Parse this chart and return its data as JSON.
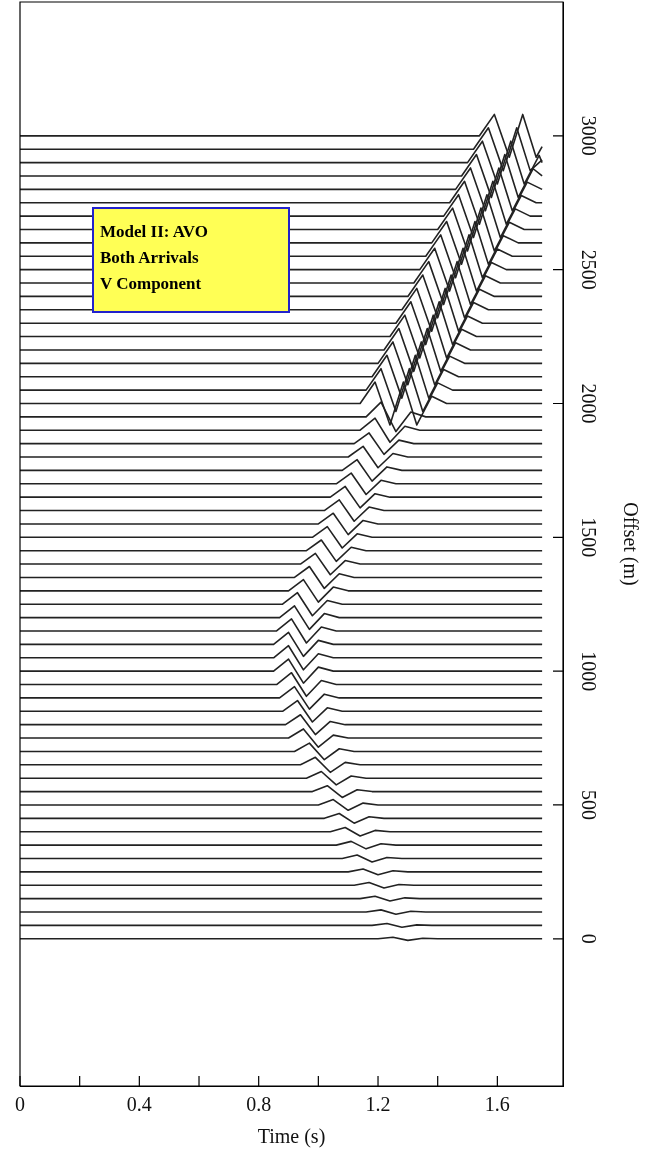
{
  "chart_data": {
    "type": "line",
    "xlabel": "Time (s)",
    "ylabel": "Offset (m)",
    "marker": "none",
    "annotations": [
      "Model II: AVO",
      "Both Arrivals",
      "V Component"
    ],
    "xlim": [
      0,
      1.82
    ],
    "ylim": [
      -550,
      3500
    ],
    "xticks": [
      0,
      {
        "value": 0.2,
        "label": null
      },
      0.4,
      {
        "value": 0.6,
        "label": null
      },
      0.8,
      {
        "value": 1.0,
        "label": null
      },
      1.2,
      {
        "value": 1.4,
        "label": null
      },
      1.6
    ],
    "yticks": [
      0,
      500,
      1000,
      1500,
      2000,
      2500,
      3000
    ],
    "series": [
      {
        "color": "#222222",
        "x": [
          0,
          1.2,
          1.25,
          1.3,
          1.35,
          1.4,
          1.75
        ],
        "values": [
          0,
          0,
          6,
          -6,
          2,
          0,
          0
        ]
      },
      {
        "color": "#222222",
        "x": [
          0,
          1.18,
          1.23,
          1.28,
          1.33,
          1.38,
          1.75
        ],
        "values": [
          50,
          50,
          57,
          43,
          52,
          50,
          50
        ]
      },
      {
        "color": "#222222",
        "x": [
          0,
          1.16,
          1.21,
          1.26,
          1.31,
          1.36,
          1.75
        ],
        "values": [
          100,
          100,
          108,
          92,
          103,
          100,
          100
        ]
      },
      {
        "color": "#222222",
        "x": [
          0,
          1.14,
          1.19,
          1.24,
          1.29,
          1.34,
          1.75
        ],
        "values": [
          150,
          150,
          159,
          141,
          153,
          150,
          150
        ]
      },
      {
        "color": "#222222",
        "x": [
          0,
          1.12,
          1.17,
          1.22,
          1.27,
          1.32,
          1.75
        ],
        "values": [
          200,
          200,
          210,
          190,
          203,
          200,
          200
        ]
      },
      {
        "color": "#222222",
        "x": [
          0,
          1.1,
          1.15,
          1.2,
          1.25,
          1.3,
          1.75
        ],
        "values": [
          250,
          250,
          261,
          239,
          254,
          250,
          250
        ]
      },
      {
        "color": "#222222",
        "x": [
          0,
          1.08,
          1.13,
          1.18,
          1.23,
          1.28,
          1.75
        ],
        "values": [
          300,
          300,
          313,
          287,
          304,
          300,
          300
        ]
      },
      {
        "color": "#222222",
        "x": [
          0,
          1.06,
          1.11,
          1.16,
          1.21,
          1.26,
          1.75
        ],
        "values": [
          350,
          350,
          364,
          336,
          355,
          350,
          350
        ]
      },
      {
        "color": "#222222",
        "x": [
          0,
          1.04,
          1.09,
          1.14,
          1.19,
          1.24,
          1.75
        ],
        "values": [
          400,
          400,
          416,
          384,
          405,
          400,
          400
        ]
      },
      {
        "color": "#222222",
        "x": [
          0,
          1.02,
          1.07,
          1.12,
          1.17,
          1.22,
          1.75
        ],
        "values": [
          450,
          450,
          468,
          432,
          456,
          450,
          450
        ]
      },
      {
        "color": "#222222",
        "x": [
          0,
          1,
          1.05,
          1.1,
          1.15,
          1.2,
          1.75
        ],
        "values": [
          500,
          500,
          520,
          480,
          507,
          500,
          500
        ]
      },
      {
        "color": "#222222",
        "x": [
          0,
          0.98,
          1.03,
          1.08,
          1.13,
          1.18,
          1.75
        ],
        "values": [
          550,
          550,
          572,
          528,
          557,
          550,
          550
        ]
      },
      {
        "color": "#222222",
        "x": [
          0,
          0.96,
          1.01,
          1.06,
          1.11,
          1.16,
          1.75
        ],
        "values": [
          600,
          600,
          625,
          575,
          608,
          600,
          600
        ]
      },
      {
        "color": "#222222",
        "x": [
          0,
          0.94,
          0.99,
          1.04,
          1.09,
          1.14,
          1.75
        ],
        "values": [
          650,
          650,
          678,
          622,
          659,
          650,
          650
        ]
      },
      {
        "color": "#222222",
        "x": [
          0,
          0.92,
          0.97,
          1.02,
          1.07,
          1.12,
          1.75
        ],
        "values": [
          700,
          700,
          731,
          669,
          710,
          700,
          700
        ]
      },
      {
        "color": "#222222",
        "x": [
          0,
          0.9,
          0.95,
          1,
          1.05,
          1.1,
          1.75
        ],
        "values": [
          750,
          750,
          784,
          716,
          761,
          750,
          750
        ]
      },
      {
        "color": "#222222",
        "x": [
          0,
          0.89,
          0.94,
          0.99,
          1.04,
          1.09,
          1.75
        ],
        "values": [
          800,
          800,
          837,
          763,
          812,
          800,
          800
        ]
      },
      {
        "color": "#222222",
        "x": [
          0,
          0.88,
          0.93,
          0.98,
          1.03,
          1.08,
          1.75
        ],
        "values": [
          850,
          850,
          890,
          810,
          863,
          850,
          850
        ]
      },
      {
        "color": "#222222",
        "x": [
          0,
          0.87,
          0.92,
          0.97,
          1.02,
          1.07,
          1.75
        ],
        "values": [
          900,
          900,
          942,
          858,
          914,
          900,
          900
        ]
      },
      {
        "color": "#222222",
        "x": [
          0,
          0.86,
          0.91,
          0.96,
          1.01,
          1.06,
          1.75
        ],
        "values": [
          950,
          950,
          994,
          906,
          965,
          950,
          950
        ]
      },
      {
        "color": "#222222",
        "x": [
          0,
          0.85,
          0.9,
          0.95,
          1,
          1.05,
          1.75
        ],
        "values": [
          1000,
          1000,
          1045,
          955,
          1015,
          1000,
          1000
        ]
      },
      {
        "color": "#222222",
        "x": [
          0,
          0.85,
          0.9,
          0.95,
          1,
          1.05,
          1.75
        ],
        "values": [
          1050,
          1050,
          1095,
          1005,
          1065,
          1050,
          1050
        ]
      },
      {
        "color": "#222222",
        "x": [
          0,
          0.85,
          0.9,
          0.95,
          1,
          1.05,
          1.75
        ],
        "values": [
          1100,
          1100,
          1145,
          1055,
          1115,
          1100,
          1100
        ]
      },
      {
        "color": "#222222",
        "x": [
          0,
          0.86,
          0.91,
          0.96,
          1.01,
          1.06,
          1.75
        ],
        "values": [
          1150,
          1150,
          1195,
          1105,
          1165,
          1150,
          1150
        ]
      },
      {
        "color": "#222222",
        "x": [
          0,
          0.87,
          0.92,
          0.97,
          1.02,
          1.07,
          1.75
        ],
        "values": [
          1200,
          1200,
          1244,
          1156,
          1215,
          1200,
          1200
        ]
      },
      {
        "color": "#222222",
        "x": [
          0,
          0.88,
          0.93,
          0.98,
          1.03,
          1.08,
          1.75
        ],
        "values": [
          1250,
          1250,
          1293,
          1207,
          1264,
          1250,
          1250
        ]
      },
      {
        "color": "#222222",
        "x": [
          0,
          0.9,
          0.95,
          1,
          1.05,
          1.1,
          1.75
        ],
        "values": [
          1300,
          1300,
          1342,
          1258,
          1314,
          1300,
          1300
        ]
      },
      {
        "color": "#222222",
        "x": [
          0,
          0.92,
          0.97,
          1.02,
          1.07,
          1.12,
          1.75
        ],
        "values": [
          1350,
          1350,
          1391,
          1309,
          1364,
          1350,
          1350
        ]
      },
      {
        "color": "#222222",
        "x": [
          0,
          0.94,
          0.99,
          1.04,
          1.09,
          1.14,
          1.75
        ],
        "values": [
          1400,
          1400,
          1440,
          1360,
          1413,
          1400,
          1400
        ]
      },
      {
        "color": "#222222",
        "x": [
          0,
          0.96,
          1.01,
          1.06,
          1.11,
          1.16,
          1.75
        ],
        "values": [
          1450,
          1450,
          1490,
          1410,
          1463,
          1450,
          1450
        ]
      },
      {
        "color": "#222222",
        "x": [
          0,
          0.98,
          1.03,
          1.08,
          1.13,
          1.18,
          1.75
        ],
        "values": [
          1500,
          1500,
          1540,
          1460,
          1513,
          1500,
          1500
        ]
      },
      {
        "color": "#222222",
        "x": [
          0,
          1,
          1.05,
          1.1,
          1.15,
          1.2,
          1.75
        ],
        "values": [
          1550,
          1550,
          1590,
          1510,
          1563,
          1550,
          1550
        ]
      },
      {
        "color": "#222222",
        "x": [
          0,
          1.02,
          1.07,
          1.12,
          1.17,
          1.22,
          1.75
        ],
        "values": [
          1600,
          1600,
          1640,
          1560,
          1613,
          1600,
          1600
        ]
      },
      {
        "color": "#222222",
        "x": [
          0,
          1.04,
          1.09,
          1.14,
          1.19,
          1.24,
          1.75
        ],
        "values": [
          1650,
          1650,
          1690,
          1610,
          1663,
          1650,
          1650
        ]
      },
      {
        "color": "#222222",
        "x": [
          0,
          1.06,
          1.11,
          1.16,
          1.21,
          1.26,
          1.75
        ],
        "values": [
          1700,
          1700,
          1740,
          1660,
          1713,
          1700,
          1700
        ]
      },
      {
        "color": "#222222",
        "x": [
          0,
          1.08,
          1.13,
          1.18,
          1.23,
          1.28,
          1.75
        ],
        "values": [
          1750,
          1750,
          1790,
          1710,
          1763,
          1750,
          1750
        ]
      },
      {
        "color": "#222222",
        "x": [
          0,
          1.1,
          1.15,
          1.2,
          1.25,
          1.3,
          1.75
        ],
        "values": [
          1800,
          1800,
          1840,
          1760,
          1813,
          1800,
          1800
        ]
      },
      {
        "color": "#222222",
        "x": [
          0,
          1.12,
          1.17,
          1.22,
          1.27,
          1.32,
          1.75
        ],
        "values": [
          1850,
          1850,
          1890,
          1810,
          1863,
          1850,
          1850
        ]
      },
      {
        "color": "#222222",
        "x": [
          0,
          1.14,
          1.19,
          1.24,
          1.29,
          1.34,
          1.75
        ],
        "values": [
          1900,
          1900,
          1945,
          1855,
          1915,
          1900,
          1900
        ]
      },
      {
        "color": "#222222",
        "x": [
          0,
          1.16,
          1.21,
          1.26,
          1.31,
          1.36,
          1.75
        ],
        "values": [
          1950,
          1950,
          2005,
          1895,
          1968,
          1950,
          1950
        ]
      },
      {
        "color": "#222222",
        "x": [
          0,
          1.14,
          1.19,
          1.24,
          1.285,
          1.33,
          1.38,
          1.43,
          1.75
        ],
        "values": [
          2000,
          2000,
          2080,
          1920,
          2080,
          1920,
          2027,
          2000,
          2000
        ]
      },
      {
        "color": "#222222",
        "x": [
          0,
          1.16,
          1.21,
          1.26,
          1.305,
          1.35,
          1.4,
          1.45,
          1.75
        ],
        "values": [
          2050,
          2050,
          2130,
          1970,
          2130,
          1970,
          2077,
          2050,
          2050
        ]
      },
      {
        "color": "#222222",
        "x": [
          0,
          1.18,
          1.23,
          1.28,
          1.325,
          1.37,
          1.42,
          1.47,
          1.75
        ],
        "values": [
          2100,
          2100,
          2180,
          2020,
          2180,
          2020,
          2127,
          2100,
          2100
        ]
      },
      {
        "color": "#222222",
        "x": [
          0,
          1.2,
          1.25,
          1.3,
          1.345,
          1.39,
          1.44,
          1.49,
          1.75
        ],
        "values": [
          2150,
          2150,
          2230,
          2070,
          2230,
          2070,
          2177,
          2150,
          2150
        ]
      },
      {
        "color": "#222222",
        "x": [
          0,
          1.22,
          1.27,
          1.32,
          1.365,
          1.41,
          1.46,
          1.51,
          1.75
        ],
        "values": [
          2200,
          2200,
          2280,
          2120,
          2280,
          2120,
          2227,
          2200,
          2200
        ]
      },
      {
        "color": "#222222",
        "x": [
          0,
          1.24,
          1.29,
          1.34,
          1.385,
          1.43,
          1.48,
          1.53,
          1.75
        ],
        "values": [
          2250,
          2250,
          2330,
          2170,
          2330,
          2170,
          2277,
          2250,
          2250
        ]
      },
      {
        "color": "#222222",
        "x": [
          0,
          1.26,
          1.31,
          1.36,
          1.405,
          1.45,
          1.5,
          1.55,
          1.75
        ],
        "values": [
          2300,
          2300,
          2380,
          2220,
          2380,
          2220,
          2327,
          2300,
          2300
        ]
      },
      {
        "color": "#222222",
        "x": [
          0,
          1.28,
          1.33,
          1.38,
          1.425,
          1.47,
          1.52,
          1.57,
          1.75
        ],
        "values": [
          2350,
          2350,
          2430,
          2270,
          2430,
          2270,
          2377,
          2350,
          2350
        ]
      },
      {
        "color": "#222222",
        "x": [
          0,
          1.3,
          1.35,
          1.4,
          1.445,
          1.49,
          1.54,
          1.59,
          1.75
        ],
        "values": [
          2400,
          2400,
          2480,
          2320,
          2480,
          2320,
          2427,
          2400,
          2400
        ]
      },
      {
        "color": "#222222",
        "x": [
          0,
          1.32,
          1.37,
          1.42,
          1.465,
          1.51,
          1.56,
          1.61,
          1.75
        ],
        "values": [
          2450,
          2450,
          2530,
          2370,
          2530,
          2370,
          2477,
          2450,
          2450
        ]
      },
      {
        "color": "#222222",
        "x": [
          0,
          1.34,
          1.39,
          1.44,
          1.485,
          1.53,
          1.58,
          1.63,
          1.75
        ],
        "values": [
          2500,
          2500,
          2580,
          2420,
          2580,
          2420,
          2527,
          2500,
          2500
        ]
      },
      {
        "color": "#222222",
        "x": [
          0,
          1.36,
          1.41,
          1.46,
          1.505,
          1.55,
          1.6,
          1.65,
          1.75
        ],
        "values": [
          2550,
          2550,
          2630,
          2470,
          2630,
          2470,
          2577,
          2550,
          2550
        ]
      },
      {
        "color": "#222222",
        "x": [
          0,
          1.38,
          1.43,
          1.48,
          1.525,
          1.57,
          1.62,
          1.67,
          1.75
        ],
        "values": [
          2600,
          2600,
          2680,
          2520,
          2680,
          2520,
          2627,
          2600,
          2600
        ]
      },
      {
        "color": "#222222",
        "x": [
          0,
          1.4,
          1.45,
          1.5,
          1.545,
          1.59,
          1.64,
          1.69,
          1.75
        ],
        "values": [
          2650,
          2650,
          2730,
          2570,
          2730,
          2570,
          2677,
          2650,
          2650
        ]
      },
      {
        "color": "#222222",
        "x": [
          0,
          1.42,
          1.47,
          1.52,
          1.565,
          1.61,
          1.66,
          1.71,
          1.75
        ],
        "values": [
          2700,
          2700,
          2780,
          2620,
          2780,
          2620,
          2727,
          2700,
          2700
        ]
      },
      {
        "color": "#222222",
        "x": [
          0,
          1.44,
          1.49,
          1.54,
          1.585,
          1.63,
          1.68,
          1.73,
          1.75
        ],
        "values": [
          2750,
          2750,
          2830,
          2670,
          2830,
          2670,
          2777,
          2750,
          2750
        ]
      },
      {
        "color": "#222222",
        "x": [
          0,
          1.46,
          1.51,
          1.56,
          1.605,
          1.65,
          1.7,
          1.75
        ],
        "values": [
          2800,
          2800,
          2880,
          2720,
          2880,
          2720,
          2827,
          2800
        ]
      },
      {
        "color": "#222222",
        "x": [
          0,
          1.48,
          1.53,
          1.58,
          1.625,
          1.67,
          1.72,
          1.75
        ],
        "values": [
          2850,
          2850,
          2930,
          2770,
          2930,
          2770,
          2877,
          2850
        ]
      },
      {
        "color": "#222222",
        "x": [
          0,
          1.5,
          1.55,
          1.6,
          1.645,
          1.69,
          1.74,
          1.75
        ],
        "values": [
          2900,
          2900,
          2980,
          2820,
          2980,
          2820,
          2927,
          2900
        ]
      },
      {
        "color": "#222222",
        "x": [
          0,
          1.52,
          1.57,
          1.62,
          1.665,
          1.71,
          1.75
        ],
        "values": [
          2950,
          2950,
          3030,
          2870,
          3030,
          2870,
          2910
        ]
      },
      {
        "color": "#222222",
        "x": [
          0,
          1.54,
          1.59,
          1.64,
          1.685,
          1.73,
          1.75
        ],
        "values": [
          3000,
          3000,
          3080,
          2920,
          3080,
          2920,
          2960
        ]
      }
    ]
  }
}
